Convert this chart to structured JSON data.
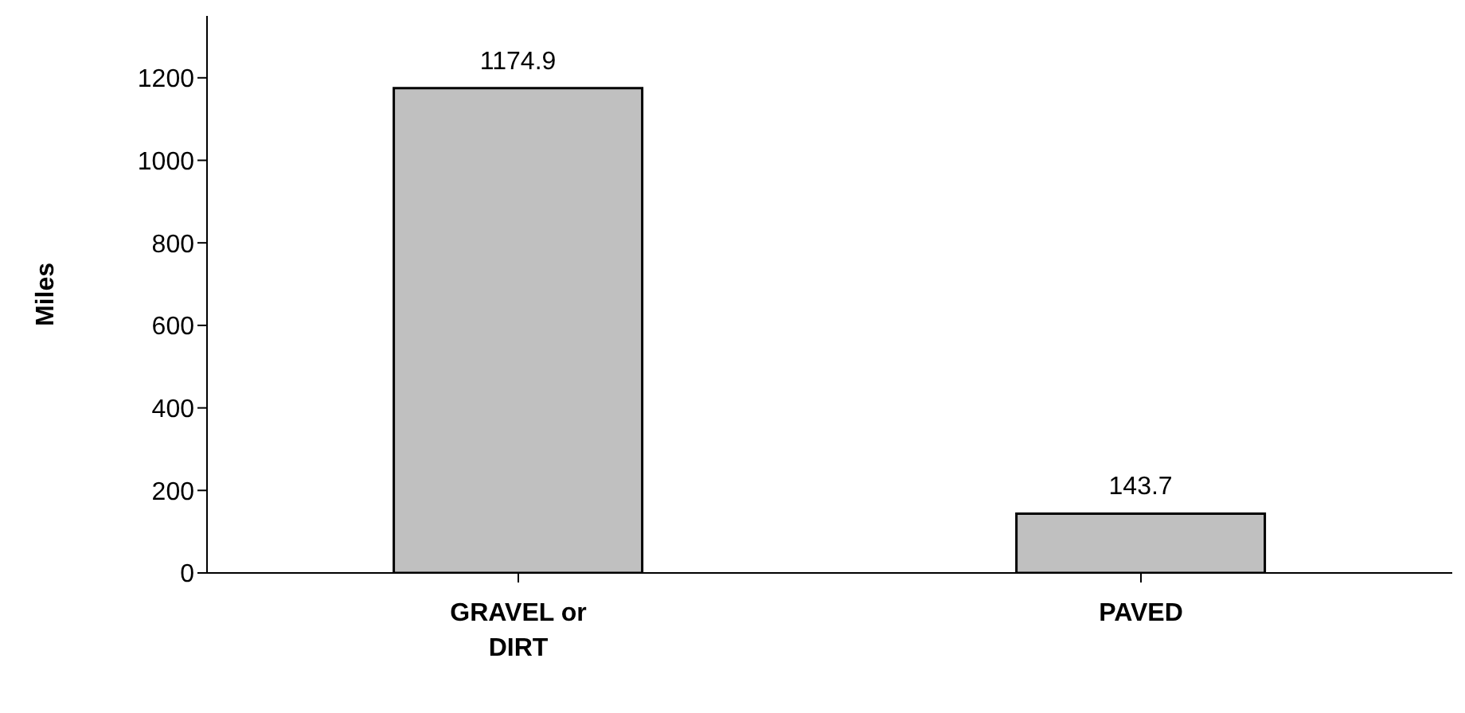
{
  "chart_data": {
    "type": "bar",
    "ylabel": "Miles",
    "categories": [
      "GRAVEL or DIRT",
      "PAVED"
    ],
    "values": [
      1174.9,
      143.7
    ],
    "color": "#c0c0c0",
    "ylim": [
      0,
      1350
    ],
    "yticks": [
      0,
      200,
      400,
      600,
      800,
      1000,
      1200
    ],
    "data_labels": true,
    "grid": false,
    "legend": false
  }
}
